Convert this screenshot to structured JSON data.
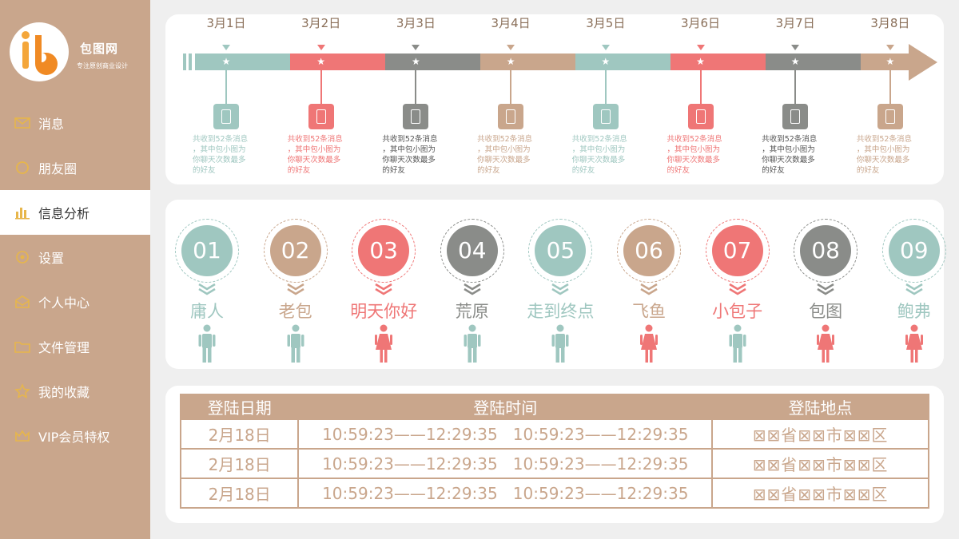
{
  "brand": {
    "name": "包图网",
    "tagline": "专注原创商业设计",
    "logo_letters": "ib"
  },
  "sidebar": {
    "items": [
      {
        "label": "消息",
        "icon": "mail-icon"
      },
      {
        "label": "朋友圈",
        "icon": "circle-icon"
      },
      {
        "label": "信息分析",
        "icon": "bar-chart-icon",
        "active": true
      },
      {
        "label": "设置",
        "icon": "settings-icon"
      },
      {
        "label": "个人中心",
        "icon": "user-envelope-icon"
      },
      {
        "label": "文件管理",
        "icon": "folder-icon"
      },
      {
        "label": "我的收藏",
        "icon": "star-icon"
      },
      {
        "label": "VIP会员特权",
        "icon": "crown-icon"
      }
    ]
  },
  "timeline": {
    "items": [
      {
        "date": "3月1日",
        "line1": "共收到52条消息",
        "line2": "，其中包小图为",
        "line3": "你聊天次数最多",
        "line4": "的好友",
        "color": "#9fc7c0"
      },
      {
        "date": "3月2日",
        "line1": "共收到52条消息",
        "line2": "，其中包小图为",
        "line3": "你聊天次数最多",
        "line4": "的好友",
        "color": "#ef7676"
      },
      {
        "date": "3月3日",
        "line1": "共收到52条消息",
        "line2": "，其中包小图为",
        "line3": "你聊天次数最多",
        "line4": "的好友",
        "color": "#8a8c89"
      },
      {
        "date": "3月4日",
        "line1": "共收到52条消息",
        "line2": "，其中包小图为",
        "line3": "你聊天次数最多",
        "line4": "的好友",
        "color": "#c9a68c"
      },
      {
        "date": "3月5日",
        "line1": "共收到52条消息",
        "line2": "，其中包小图为",
        "line3": "你聊天次数最多",
        "line4": "的好友",
        "color": "#9fc7c0"
      },
      {
        "date": "3月6日",
        "line1": "共收到52条消息",
        "line2": "，其中包小图为",
        "line3": "你聊天次数最多",
        "line4": "的好友",
        "color": "#ef7676"
      },
      {
        "date": "3月7日",
        "line1": "共收到52条消息",
        "line2": "，其中包小图为",
        "line3": "你聊天次数最多",
        "line4": "的好友",
        "color": "#8a8c89"
      },
      {
        "date": "3月8日",
        "line1": "共收到52条消息",
        "line2": "，其中包小图为",
        "line3": "你聊天次数最多",
        "line4": "的好友",
        "color": "#c9a68c"
      }
    ]
  },
  "people": [
    {
      "num": "01",
      "name": "庸人",
      "gender": "male",
      "color": "#9fc7c0"
    },
    {
      "num": "02",
      "name": "老包",
      "gender": "male",
      "color": "#c9a68c"
    },
    {
      "num": "03",
      "name": "明天你好",
      "gender": "female",
      "color": "#ef7676"
    },
    {
      "num": "04",
      "name": "荒原",
      "gender": "male",
      "color": "#8a8c89"
    },
    {
      "num": "05",
      "name": "走到终点",
      "gender": "male",
      "color": "#9fc7c0"
    },
    {
      "num": "06",
      "name": "飞鱼",
      "gender": "female",
      "color": "#c9a68c"
    },
    {
      "num": "07",
      "name": "小包子",
      "gender": "male",
      "color": "#ef7676"
    },
    {
      "num": "08",
      "name": "包图",
      "gender": "female",
      "color": "#8a8c89"
    },
    {
      "num": "09",
      "name": "鲍弗",
      "gender": "female",
      "color": "#9fc7c0"
    }
  ],
  "login_table": {
    "headers": [
      "登陆日期",
      "登陆时间",
      "登陆地点"
    ],
    "rows": [
      {
        "date": "2月18日",
        "time": "10:59:23——12:29:35   10:59:23——12:29:35",
        "place": "⊠⊠省⊠⊠市⊠⊠区"
      },
      {
        "date": "2月18日",
        "time": "10:59:23——12:29:35   10:59:23——12:29:35",
        "place": "⊠⊠省⊠⊠市⊠⊠区"
      },
      {
        "date": "2月18日",
        "time": "10:59:23——12:29:35   10:59:23——12:29:35",
        "place": "⊠⊠省⊠⊠市⊠⊠区"
      }
    ]
  },
  "colors": {
    "teal": "#9fc7c0",
    "coral": "#ef7676",
    "gray": "#8a8c89",
    "tan": "#c9a68c"
  }
}
